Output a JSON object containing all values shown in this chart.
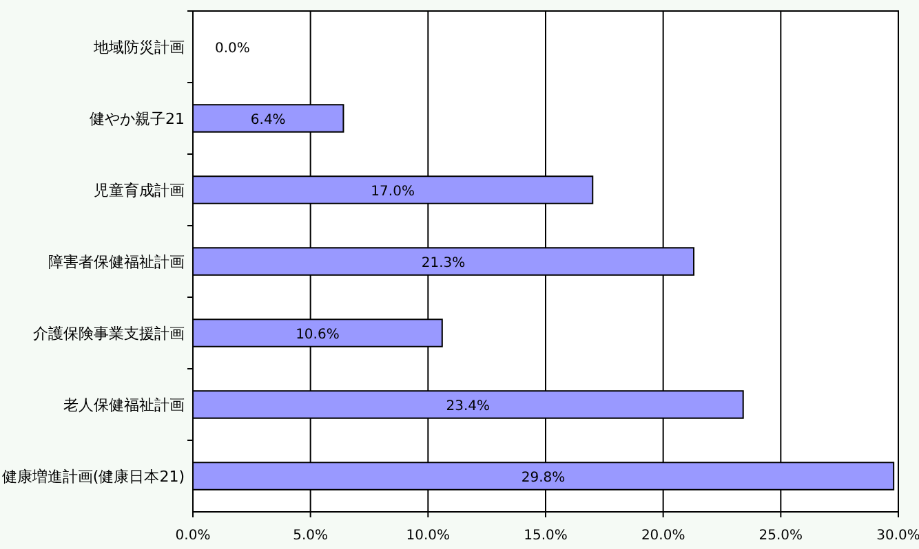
{
  "chart_data": {
    "type": "bar",
    "orientation": "horizontal",
    "categories": [
      "地域防災計画",
      "健やか親子21",
      "児童育成計画",
      "障害者保健福祉計画",
      "介護保険事業支援計画",
      "老人保健福祉計画",
      "健康増進計画(健康日本21)"
    ],
    "values": [
      0.0,
      6.4,
      17.0,
      21.3,
      10.6,
      23.4,
      29.8
    ],
    "value_labels": [
      "0.0%",
      "6.4%",
      "17.0%",
      "21.3%",
      "10.6%",
      "23.4%",
      "29.8%"
    ],
    "color": "#9999ff",
    "xlim": [
      0,
      30
    ],
    "xticks": [
      {
        "value": 0,
        "label": "0.0%"
      },
      {
        "value": 5,
        "label": "5.0%"
      },
      {
        "value": 10,
        "label": "10.0%"
      },
      {
        "value": 15,
        "label": "15.0%"
      },
      {
        "value": 20,
        "label": "20.0%"
      },
      {
        "value": 25,
        "label": "25.0%"
      },
      {
        "value": 30,
        "label": "30.0%"
      }
    ],
    "grid": "x"
  }
}
